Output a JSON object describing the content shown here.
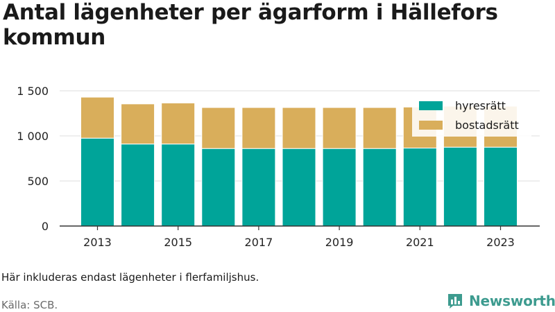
{
  "chart_data": {
    "type": "bar",
    "stacked": true,
    "title": "Antal lägenheter per ägarform i Hällefors kommun",
    "categories": [
      "2013",
      "2014",
      "2015",
      "2016",
      "2017",
      "2018",
      "2019",
      "2020",
      "2021",
      "2022",
      "2023"
    ],
    "x_tick_labels": [
      "2013",
      "2015",
      "2017",
      "2019",
      "2021",
      "2023"
    ],
    "series": [
      {
        "name": "hyresrätt",
        "color": "#00a499",
        "values": [
          975,
          910,
          910,
          860,
          860,
          860,
          860,
          860,
          865,
          875,
          875
        ]
      },
      {
        "name": "bostadsrätt",
        "color": "#d9ae5b",
        "values": [
          455,
          445,
          455,
          455,
          455,
          455,
          455,
          455,
          455,
          455,
          455
        ]
      }
    ],
    "ylim": [
      0,
      1600
    ],
    "y_ticks": [
      0,
      500,
      1000,
      1500
    ],
    "y_tick_labels": [
      "0",
      "500",
      "1 000",
      "1 500"
    ],
    "grid": true,
    "legend_position": "top-right"
  },
  "footer": {
    "note": "Här inkluderas endast lägenheter i flerfamiljshus.",
    "source": "Källa: SCB.",
    "brand": "Newsworthy",
    "brand_icon": "bar-chart-speech-bubble-icon",
    "brand_color": "#3d9b8f"
  }
}
